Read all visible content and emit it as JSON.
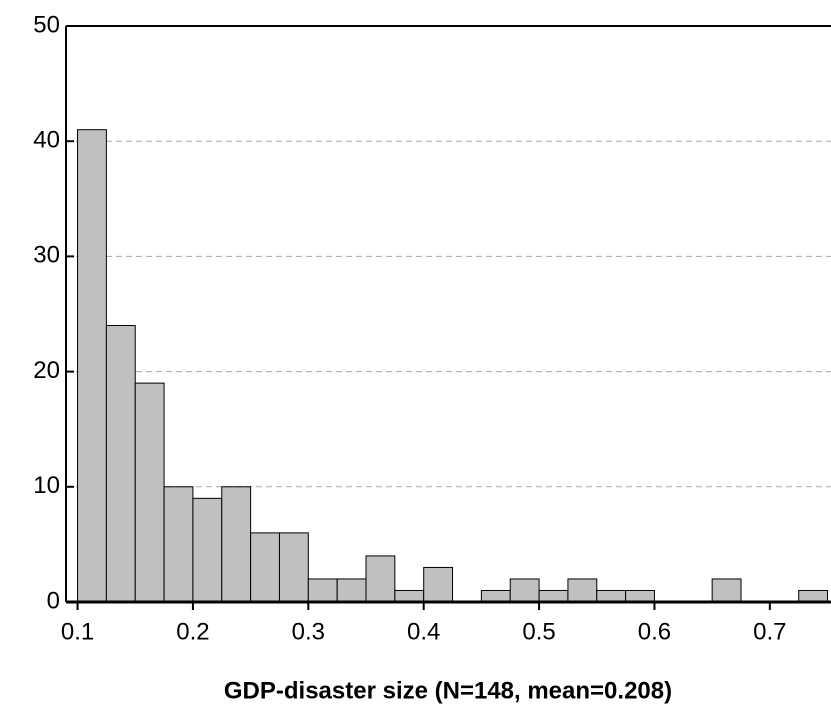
{
  "chart_data": {
    "type": "histogram",
    "x_label": "GDP-disaster size (N=148, mean=0.208)",
    "bins": [
      0.1,
      0.125,
      0.15,
      0.175,
      0.2,
      0.225,
      0.25,
      0.275,
      0.3,
      0.325,
      0.35,
      0.375,
      0.4,
      0.425,
      0.45,
      0.475,
      0.5,
      0.525,
      0.55,
      0.575,
      0.6,
      0.625,
      0.65,
      0.675,
      0.7,
      0.725,
      0.75
    ],
    "values": [
      41,
      24,
      19,
      10,
      9,
      10,
      6,
      6,
      2,
      2,
      4,
      1,
      3,
      0,
      1,
      2,
      1,
      2,
      1,
      1,
      0,
      0,
      2,
      0,
      0,
      1
    ],
    "color": "#c0c0c0",
    "xlim": [
      0.09,
      0.753
    ],
    "xticks": [
      0.1,
      0.2,
      0.3,
      0.4,
      0.5,
      0.6,
      0.7
    ],
    "ylim": [
      0,
      50
    ],
    "yticks": [
      0,
      10,
      20,
      30,
      40,
      50
    ],
    "grid": true
  }
}
